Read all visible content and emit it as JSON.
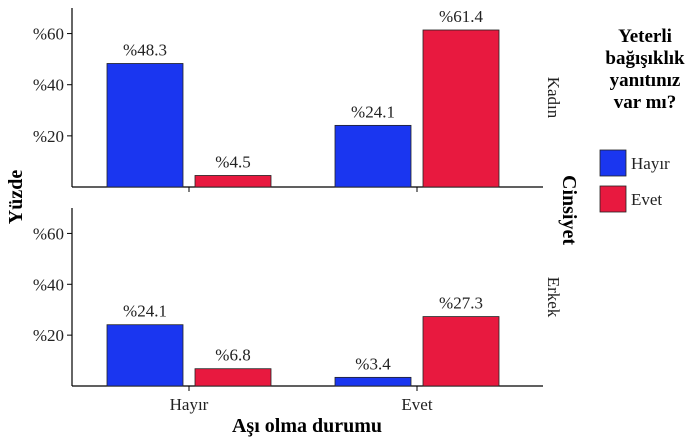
{
  "chart_data": {
    "type": "bar",
    "title": "",
    "xlabel": "Aşı olma durumu",
    "ylabel": "Yüzde",
    "facet_label": "Cinsiyet",
    "ylim": [
      0,
      70
    ],
    "yticks": [
      20,
      40,
      60
    ],
    "ytick_labels": [
      "%20",
      "%40",
      "%60"
    ],
    "categories": [
      "Hayır",
      "Evet"
    ],
    "legend": {
      "title_lines": [
        "Yeterli",
        "bağışıklık",
        "yanıtınız",
        "var mı?"
      ],
      "position": "right"
    },
    "series_colors": [
      "#1a36f0",
      "#e8193f"
    ],
    "panels": [
      {
        "name": "Kadın",
        "series": [
          {
            "name": "Hayır",
            "values": [
              48.3,
              24.1
            ],
            "labels": [
              "%48.3",
              "%24.1"
            ]
          },
          {
            "name": "Evet",
            "values": [
              4.5,
              61.4
            ],
            "labels": [
              "%4.5",
              "%61.4"
            ]
          }
        ]
      },
      {
        "name": "Erkek",
        "series": [
          {
            "name": "Hayır",
            "values": [
              24.1,
              3.4
            ],
            "labels": [
              "%24.1",
              "%3.4"
            ]
          },
          {
            "name": "Evet",
            "values": [
              6.8,
              27.3
            ],
            "labels": [
              "%6.8",
              "%27.3"
            ]
          }
        ]
      }
    ],
    "grid": false
  }
}
